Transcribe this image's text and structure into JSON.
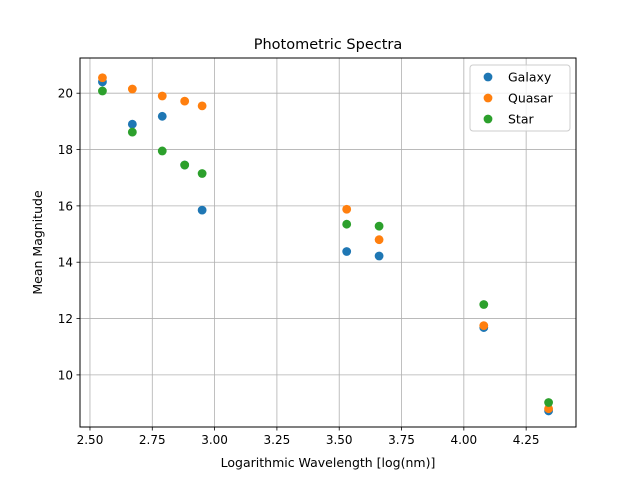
{
  "chart_data": {
    "type": "scatter",
    "title": "Photometric Spectra",
    "xlabel": "Logarithmic Wavelength [log(nm)]",
    "ylabel": "Mean Magnitude",
    "xlim": [
      2.46,
      4.45
    ],
    "ylim": [
      8.15,
      21.25
    ],
    "x_ticks": [
      2.5,
      2.75,
      3.0,
      3.25,
      3.5,
      3.75,
      4.0,
      4.25
    ],
    "x_tick_labels": [
      "2.50",
      "2.75",
      "3.00",
      "3.25",
      "3.50",
      "3.75",
      "4.00",
      "4.25"
    ],
    "y_ticks": [
      10,
      12,
      14,
      16,
      18,
      20
    ],
    "y_tick_labels": [
      "10",
      "12",
      "14",
      "16",
      "18",
      "20"
    ],
    "grid": true,
    "legend_position": "top-right",
    "series": [
      {
        "name": "Galaxy",
        "color": "#1f77b4",
        "points": [
          [
            2.55,
            20.4
          ],
          [
            2.67,
            18.9
          ],
          [
            2.79,
            19.18
          ],
          [
            2.88,
            17.45
          ],
          [
            2.95,
            15.85
          ],
          [
            3.53,
            14.38
          ],
          [
            3.66,
            14.22
          ],
          [
            4.08,
            11.68
          ],
          [
            4.34,
            8.72
          ]
        ]
      },
      {
        "name": "Quasar",
        "color": "#ff7f0e",
        "points": [
          [
            2.55,
            20.55
          ],
          [
            2.67,
            20.15
          ],
          [
            2.79,
            19.9
          ],
          [
            2.88,
            19.72
          ],
          [
            2.95,
            19.55
          ],
          [
            3.53,
            15.88
          ],
          [
            3.66,
            14.8
          ],
          [
            4.08,
            11.75
          ],
          [
            4.34,
            8.8
          ]
        ]
      },
      {
        "name": "Star",
        "color": "#2ca02c",
        "points": [
          [
            2.55,
            20.08
          ],
          [
            2.67,
            18.62
          ],
          [
            2.79,
            17.95
          ],
          [
            2.88,
            17.45
          ],
          [
            2.95,
            17.15
          ],
          [
            3.53,
            15.35
          ],
          [
            3.66,
            15.28
          ],
          [
            4.08,
            12.5
          ],
          [
            4.34,
            9.02
          ]
        ]
      }
    ]
  }
}
